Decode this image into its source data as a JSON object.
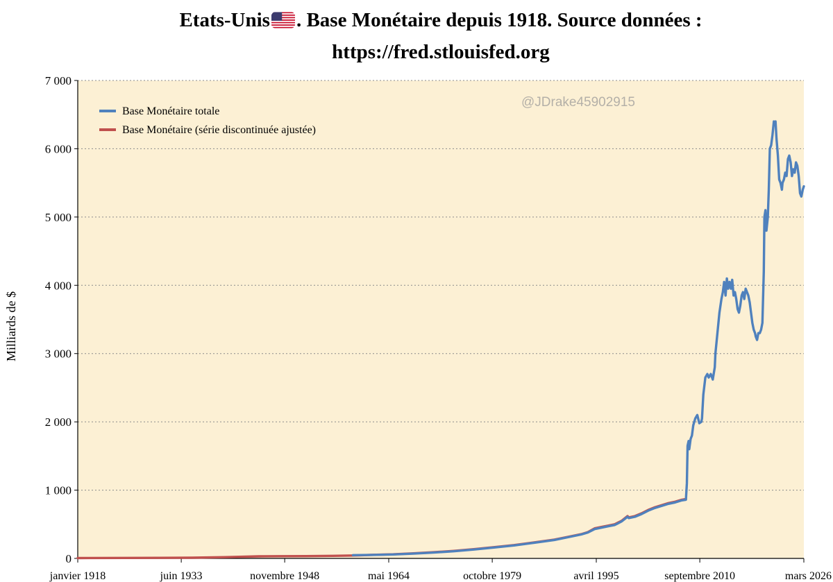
{
  "chart_data": {
    "type": "line",
    "title_line1": "Etats-Unis",
    "title_line1_rest": ". Base Monétaire depuis 1918. Source données :",
    "title_line2": "https://fred.stlouisfed.org",
    "flag_icon": "us-flag-icon",
    "watermark": "@JDrake45902915",
    "ylabel": "Milliards de $",
    "xlabel": "",
    "ylim": [
      0,
      7000
    ],
    "xlim": [
      1918.0,
      2026.17
    ],
    "grid": true,
    "legend_position": "top-left",
    "background_color": "#fcf0d4",
    "y_ticks": [
      {
        "value": 0,
        "label": "0"
      },
      {
        "value": 1000,
        "label": "1 000"
      },
      {
        "value": 2000,
        "label": "2 000"
      },
      {
        "value": 3000,
        "label": "3 000"
      },
      {
        "value": 4000,
        "label": "4 000"
      },
      {
        "value": 5000,
        "label": "5 000"
      },
      {
        "value": 6000,
        "label": "6 000"
      },
      {
        "value": 7000,
        "label": "7 000"
      }
    ],
    "x_ticks": [
      {
        "value": 1918.0,
        "label": "janvier 1918"
      },
      {
        "value": 1933.42,
        "label": "juin 1933"
      },
      {
        "value": 1948.83,
        "label": "novembre 1948"
      },
      {
        "value": 1964.33,
        "label": "mai 1964"
      },
      {
        "value": 1979.75,
        "label": "octobre 1979"
      },
      {
        "value": 1995.25,
        "label": "avril 1995"
      },
      {
        "value": 2010.67,
        "label": "septembre 2010"
      },
      {
        "value": 2026.17,
        "label": "mars 2026"
      }
    ],
    "series": [
      {
        "name": "Base Monétaire totale",
        "color": "#4f81bd",
        "x": [
          1959.0,
          1962,
          1965,
          1968,
          1971,
          1974,
          1977,
          1980,
          1983,
          1986,
          1989,
          1991,
          1993,
          1994,
          1995,
          1996,
          1997,
          1998,
          1999,
          1999.9,
          2000.1,
          2001,
          2002,
          2003,
          2004,
          2005,
          2006,
          2007,
          2008.0,
          2008.6,
          2008.75,
          2008.85,
          2009.0,
          2009.1,
          2009.3,
          2009.5,
          2009.7,
          2010.0,
          2010.3,
          2010.6,
          2010.9,
          2011.0,
          2011.2,
          2011.5,
          2011.8,
          2012.0,
          2012.3,
          2012.6,
          2012.9,
          2013.0,
          2013.3,
          2013.6,
          2013.9,
          2014.1,
          2014.3,
          2014.5,
          2014.7,
          2014.9,
          2015.1,
          2015.3,
          2015.5,
          2015.7,
          2015.9,
          2016.1,
          2016.3,
          2016.5,
          2016.7,
          2016.9,
          2017.1,
          2017.3,
          2017.5,
          2017.7,
          2017.9,
          2018.1,
          2018.3,
          2018.5,
          2018.7,
          2018.9,
          2019.0,
          2019.2,
          2019.4,
          2019.6,
          2019.8,
          2020.0,
          2020.2,
          2020.3,
          2020.45,
          2020.6,
          2020.8,
          2020.95,
          2021.1,
          2021.3,
          2021.5,
          2021.7,
          2021.9,
          2021.95,
          2022.1,
          2022.3,
          2022.5,
          2022.7,
          2022.9,
          2023.0,
          2023.2,
          2023.4,
          2023.6,
          2023.8,
          2024.0,
          2024.2,
          2024.4,
          2024.6,
          2024.8,
          2025.0,
          2025.2,
          2025.4,
          2025.6,
          2025.8,
          2026.0,
          2026.17
        ],
        "values": [
          48,
          52,
          58,
          70,
          85,
          105,
          130,
          160,
          190,
          230,
          270,
          310,
          350,
          380,
          430,
          450,
          470,
          490,
          540,
          610,
          590,
          610,
          650,
          700,
          740,
          770,
          800,
          820,
          850,
          860,
          1100,
          1650,
          1720,
          1600,
          1750,
          1800,
          1950,
          2050,
          2100,
          1980,
          2000,
          2050,
          2400,
          2650,
          2700,
          2650,
          2700,
          2620,
          2800,
          3000,
          3300,
          3600,
          3800,
          3900,
          4050,
          3850,
          4100,
          3950,
          4050,
          3950,
          4080,
          3850,
          3900,
          3800,
          3650,
          3600,
          3700,
          3850,
          3900,
          3800,
          3950,
          3900,
          3850,
          3750,
          3600,
          3450,
          3350,
          3300,
          3250,
          3200,
          3300,
          3300,
          3350,
          3450,
          4200,
          5000,
          5100,
          4800,
          5000,
          5400,
          6000,
          6050,
          6200,
          6400,
          6350,
          6400,
          6150,
          5900,
          5550,
          5500,
          5400,
          5500,
          5550,
          5650,
          5600,
          5850,
          5900,
          5800,
          5600,
          5700,
          5650,
          5800,
          5750,
          5600,
          5350,
          5300,
          5400,
          5450
        ],
        "line_width": 3.4
      },
      {
        "name": "Base Monétaire (série discontinuée ajustée)",
        "color": "#c0504d",
        "x": [
          1918,
          1925,
          1930,
          1935,
          1940,
          1945,
          1948,
          1952,
          1956,
          1960,
          1962,
          1965,
          1968,
          1971,
          1974,
          1977,
          1980,
          1983,
          1986,
          1989,
          1991,
          1993,
          1994,
          1995,
          1996,
          1997,
          1998,
          1999,
          1999.9,
          2000.1,
          2001,
          2002,
          2003,
          2004,
          2005,
          2006,
          2007,
          2008.0,
          2008.6
        ],
        "values": [
          5,
          7,
          8,
          10,
          18,
          30,
          33,
          34,
          38,
          45,
          53,
          60,
          74,
          90,
          110,
          135,
          165,
          195,
          235,
          275,
          315,
          355,
          385,
          440,
          460,
          480,
          500,
          550,
          620,
          600,
          620,
          660,
          710,
          750,
          780,
          810,
          830,
          860,
          870
        ],
        "line_width": 3.4
      }
    ]
  }
}
